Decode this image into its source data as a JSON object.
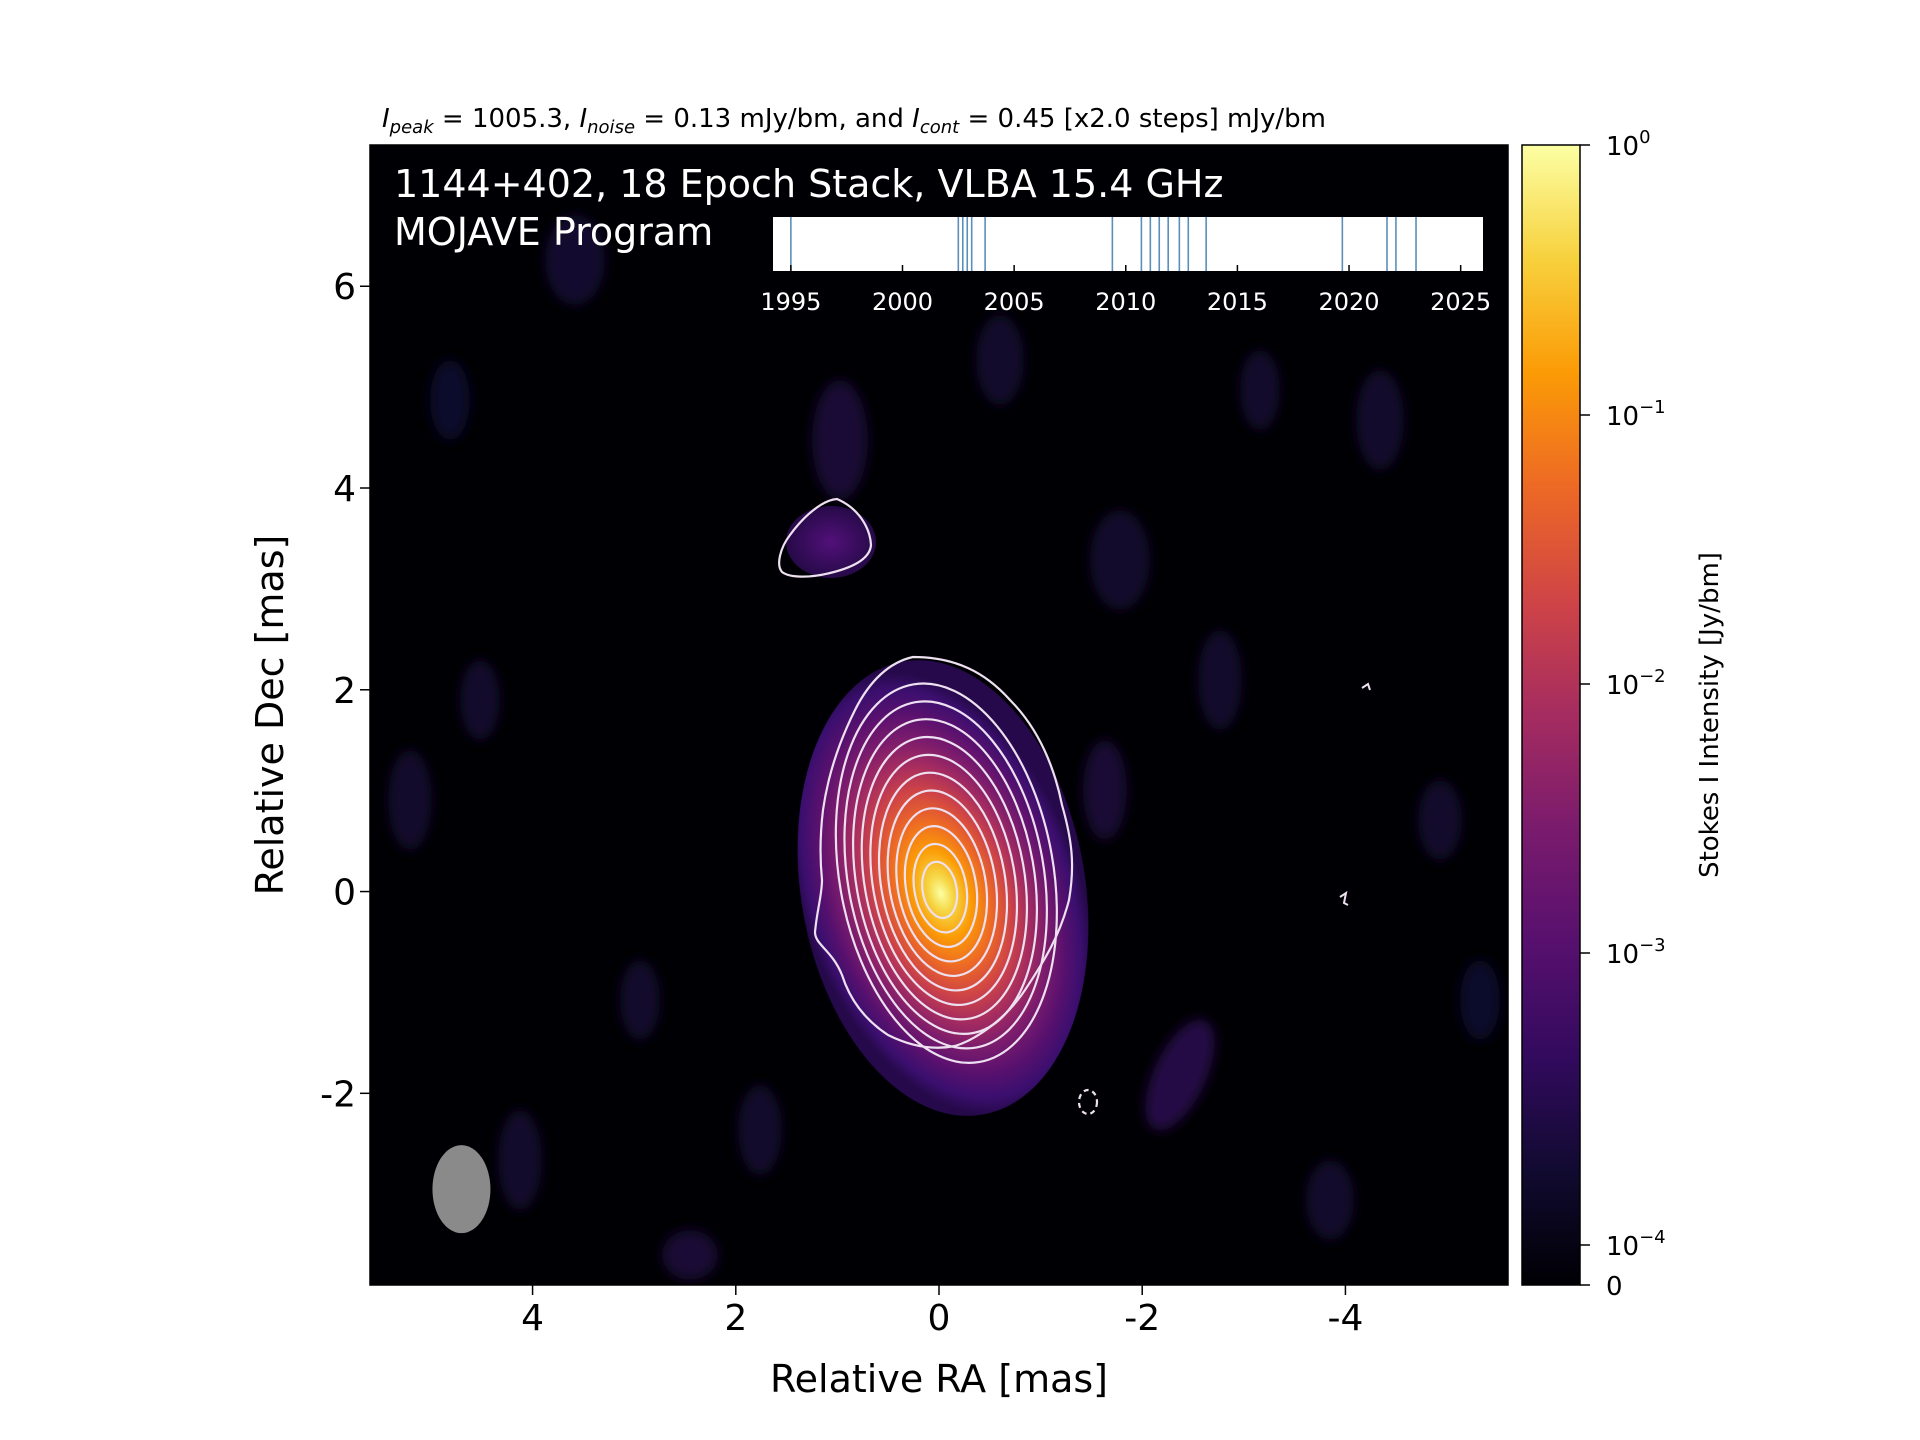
{
  "chart_data": {
    "type": "heatmap",
    "header": {
      "peak_sym": "I",
      "peak_sub": "peak",
      "peak_text": " = 1005.3, ",
      "noise_sym": "I",
      "noise_sub": "noise",
      "noise_text": " = 0.13 mJy/bm, and ",
      "cont_sym": "I",
      "cont_sub": "cont",
      "cont_text": " = 0.45 [x2.0 steps] mJy/bm"
    },
    "title_line1": "1144+402, 18 Epoch Stack, VLBA 15.4 GHz",
    "title_line2": "MOJAVE Program",
    "xlabel": "Relative RA [mas]",
    "ylabel": "Relative Dec [mas]",
    "xlim": [
      5.6,
      -5.6
    ],
    "ylim": [
      -3.9,
      7.4
    ],
    "xticks": [
      4,
      2,
      0,
      -2,
      -4
    ],
    "xtick_labels": [
      "4",
      "2",
      "0",
      "-2",
      "-4"
    ],
    "yticks": [
      -2,
      0,
      2,
      4,
      6
    ],
    "ytick_labels": [
      "-2",
      "0",
      "2",
      "4",
      "6"
    ],
    "core": {
      "ra": 0.0,
      "dec": 0.0
    },
    "contour_count": 12,
    "secondary_component": {
      "ra": 1.1,
      "dec": 3.4
    },
    "beam": {
      "ra": 4.7,
      "dec": -2.95
    },
    "colorbar": {
      "label": "Stokes I Intensity [Jy/bm]",
      "scale": "log",
      "cmap": "inferno",
      "ticks": [
        {
          "base": "10",
          "exp": "0",
          "value": 1
        },
        {
          "base": "10",
          "exp": "−1",
          "value": 0.1
        },
        {
          "base": "10",
          "exp": "−2",
          "value": 0.01
        },
        {
          "base": "10",
          "exp": "−3",
          "value": 0.001
        },
        {
          "base": "10",
          "exp": "−4",
          "value": 0.0001
        },
        {
          "base": "0",
          "exp": "",
          "value": 0
        }
      ]
    },
    "epoch_timeline": {
      "xlim": [
        1994.2,
        2026.0
      ],
      "ticks": [
        1995,
        2000,
        2005,
        2010,
        2015,
        2020,
        2025
      ],
      "tick_labels": [
        "1995",
        "2000",
        "2005",
        "2010",
        "2015",
        "2020",
        "2025"
      ],
      "epochs": [
        1995.0,
        2002.5,
        2002.7,
        2002.9,
        2003.1,
        2003.7,
        2009.4,
        2010.7,
        2011.1,
        2011.5,
        2011.9,
        2012.4,
        2012.8,
        2013.6,
        2019.7,
        2021.7,
        2022.1,
        2023.0
      ]
    }
  },
  "colors": {
    "background": "#000004",
    "contour": "#ede0f0",
    "epoch_line": "#5b8fb9",
    "beam": "#8a8a8a",
    "text": "#000000",
    "overlay_text": "#ffffff"
  }
}
